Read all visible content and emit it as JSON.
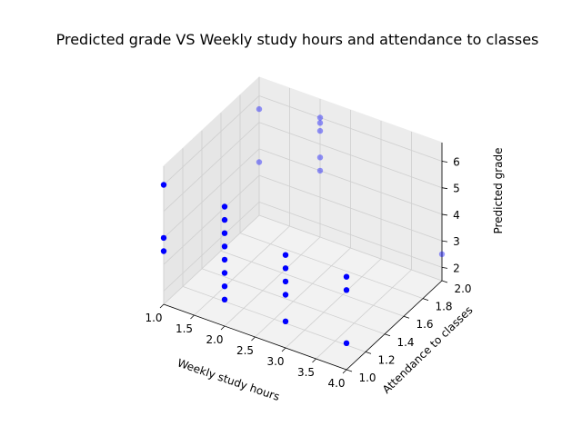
{
  "chart_data": {
    "type": "scatter3d",
    "title": "Predicted grade VS Weekly study hours and attendance to classes",
    "xlabel": "Weekly study hours",
    "ylabel": "Attendance to classes",
    "zlabel": "Predicted grade",
    "xlim": [
      1.0,
      4.0
    ],
    "ylim": [
      1.0,
      2.0
    ],
    "zlim": [
      1.5,
      6.7
    ],
    "xticks": [
      "1.0",
      "1.5",
      "2.0",
      "2.5",
      "3.0",
      "3.5",
      "4.0"
    ],
    "yticks": [
      "1.0",
      "1.2",
      "1.4",
      "1.6",
      "1.8",
      "2.0"
    ],
    "zticks": [
      "2",
      "3",
      "4",
      "5",
      "6"
    ],
    "grid": true,
    "marker_color": "#0000ff",
    "points": [
      {
        "x": 1,
        "y": 1,
        "z": 6
      },
      {
        "x": 1,
        "y": 1,
        "z": 4
      },
      {
        "x": 1,
        "y": 1,
        "z": 3.5
      },
      {
        "x": 2,
        "y": 1,
        "z": 6
      },
      {
        "x": 2,
        "y": 1,
        "z": 5.5
      },
      {
        "x": 2,
        "y": 1,
        "z": 5
      },
      {
        "x": 2,
        "y": 1,
        "z": 4.5
      },
      {
        "x": 2,
        "y": 1,
        "z": 4
      },
      {
        "x": 2,
        "y": 1,
        "z": 3.5
      },
      {
        "x": 2,
        "y": 1,
        "z": 3
      },
      {
        "x": 2,
        "y": 1,
        "z": 2.5
      },
      {
        "x": 3,
        "y": 1,
        "z": 5
      },
      {
        "x": 3,
        "y": 1,
        "z": 4.5
      },
      {
        "x": 3,
        "y": 1,
        "z": 4
      },
      {
        "x": 3,
        "y": 1,
        "z": 3.5
      },
      {
        "x": 3,
        "y": 1,
        "z": 2.5
      },
      {
        "x": 4,
        "y": 1,
        "z": 5
      },
      {
        "x": 4,
        "y": 1,
        "z": 4.5
      },
      {
        "x": 4,
        "y": 1,
        "z": 2.5
      },
      {
        "x": 1,
        "y": 2,
        "z": 5.5
      },
      {
        "x": 1,
        "y": 2,
        "z": 3.5
      },
      {
        "x": 2,
        "y": 2,
        "z": 6
      },
      {
        "x": 2,
        "y": 2,
        "z": 5.8
      },
      {
        "x": 2,
        "y": 2,
        "z": 5.5
      },
      {
        "x": 2,
        "y": 2,
        "z": 4.5
      },
      {
        "x": 2,
        "y": 2,
        "z": 4
      },
      {
        "x": 4,
        "y": 2,
        "z": 2.5
      }
    ]
  }
}
